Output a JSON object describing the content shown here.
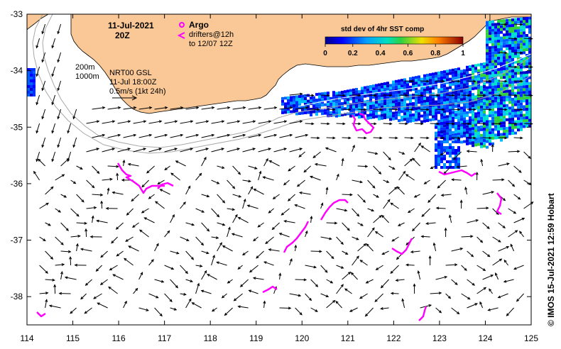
{
  "header": {
    "date": "11-Jul-2021",
    "time": "20Z"
  },
  "legend": {
    "argo_label": "Argo",
    "drifters_label": "drifters@12h",
    "drifters_label_2": "to 12/07 12Z",
    "argo_color": "#ff00ff",
    "drifter_color": "#ff00ff"
  },
  "isobaths": {
    "label_200": "200m",
    "label_1000": "1000m"
  },
  "current_info": {
    "model": "NRT00 GSL",
    "valid_time": "11-Jul 18:00Z",
    "scale": "0.5m/s (1kt 24h)"
  },
  "colorbar": {
    "title": "std dev of 4hr SST comp",
    "ticks": [
      "0",
      "0.2",
      "0.4",
      "0.6",
      "0.8",
      "1"
    ]
  },
  "axes": {
    "x_ticks": [
      "114",
      "115",
      "116",
      "117",
      "118",
      "119",
      "120",
      "121",
      "122",
      "123",
      "124",
      "125"
    ],
    "y_ticks": [
      "-33",
      "-34",
      "-35",
      "-36",
      "-37",
      "-38"
    ]
  },
  "credit": "© IMOS 15-Jul-2021 12:59 Hobart",
  "colors": {
    "land": "#f9c896",
    "ocean": "#ffffff",
    "arrow": "#000000"
  }
}
